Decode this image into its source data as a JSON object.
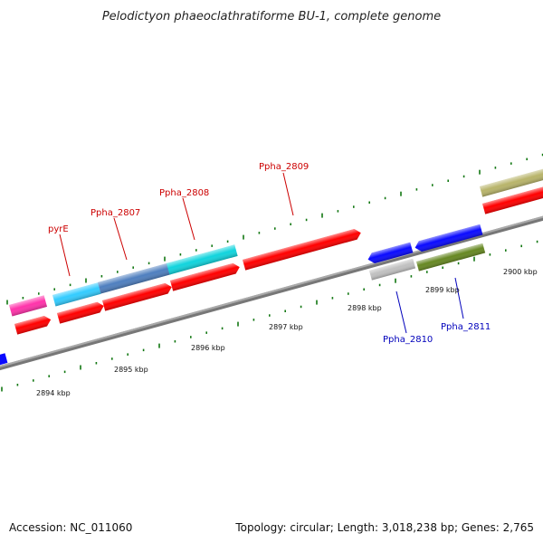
{
  "title": "Pelodictyon phaeoclathratiforme BU-1, complete genome",
  "accession_label": "Accession: NC_011060",
  "topology_label": "Topology: circular; Length: 3,018,238 bp; Genes: 2,765",
  "colors": {
    "backbone": "#777777",
    "ticks": "#117711",
    "forward_label": "#cc0000",
    "reverse_label": "#0000bb",
    "red": "#ff0000",
    "magenta": "#ff33aa",
    "sky": "#33ccff",
    "steel": "#4f7fbf",
    "cyan": "#11d4dd",
    "blue": "#0a0aff",
    "olive": "#668822",
    "grey": "#c0c0c0",
    "khaki": "#b8b46a"
  },
  "scale_labels": [
    "2894 kbp",
    "2895 kbp",
    "2896 kbp",
    "2897 kbp",
    "2898 kbp",
    "2899 kbp",
    "2900 kbp"
  ],
  "gene_labels": [
    {
      "text": "pyrE",
      "strand": "forward"
    },
    {
      "text": "Ppha_2807",
      "strand": "forward"
    },
    {
      "text": "Ppha_2808",
      "strand": "forward"
    },
    {
      "text": "Ppha_2809",
      "strand": "forward"
    },
    {
      "text": "Ppha_2810",
      "strand": "reverse"
    },
    {
      "text": "Ppha_2811",
      "strand": "reverse"
    }
  ],
  "features": [
    {
      "name": "magenta-feature",
      "color": "magenta"
    },
    {
      "name": "pyrE-feature",
      "color": "sky"
    },
    {
      "name": "Ppha_2807-feature",
      "color": "steel"
    },
    {
      "name": "Ppha_2808-feature",
      "color": "cyan"
    },
    {
      "name": "Ppha_2809-feature",
      "color": "red"
    },
    {
      "name": "Ppha_2810-feature",
      "color": "blue"
    },
    {
      "name": "Ppha_2811-feature",
      "color": "blue"
    },
    {
      "name": "grey-feature",
      "color": "grey"
    },
    {
      "name": "olive-feature",
      "color": "olive"
    },
    {
      "name": "khaki-feature",
      "color": "khaki"
    },
    {
      "name": "cds-red-1",
      "color": "red"
    },
    {
      "name": "cds-red-2",
      "color": "red"
    },
    {
      "name": "cds-red-3",
      "color": "red"
    },
    {
      "name": "cds-red-4",
      "color": "red"
    },
    {
      "name": "cds-red-5",
      "color": "red"
    },
    {
      "name": "left-blue-feature",
      "color": "blue"
    }
  ]
}
